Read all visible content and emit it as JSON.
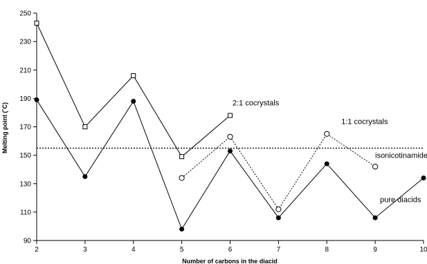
{
  "chart_data": {
    "type": "line",
    "xlabel": "Number of carbons in the diacid",
    "ylabel": "Melting point (˚C)",
    "xlim": [
      2,
      10
    ],
    "ylim": [
      90,
      250
    ],
    "x_ticks": [
      2,
      3,
      4,
      5,
      6,
      7,
      8,
      9,
      10
    ],
    "y_ticks": [
      90,
      110,
      130,
      150,
      170,
      190,
      210,
      230,
      250
    ],
    "grid": false,
    "legend": "none",
    "series": [
      {
        "name": "pure diacids",
        "marker": "filled-circle",
        "line": "solid",
        "x": [
          2,
          3,
          4,
          5,
          6,
          7,
          8,
          9,
          10
        ],
        "values": [
          189,
          135,
          188,
          98,
          153,
          106,
          144,
          106,
          134
        ]
      },
      {
        "name": "2:1 cocrystals",
        "marker": "open-square",
        "line": "solid",
        "x": [
          2,
          3,
          4,
          5,
          6
        ],
        "values": [
          243,
          170,
          206,
          149,
          178
        ]
      },
      {
        "name": "1:1 cocrystals",
        "marker": "open-circle",
        "line": "dotted",
        "x": [
          5,
          6,
          7,
          8,
          9
        ],
        "values": [
          134,
          163,
          112,
          165,
          142
        ]
      }
    ],
    "reference_line": {
      "label": "isonicotinamide",
      "value": 155,
      "style": "dotted"
    },
    "annotations": [
      {
        "text": "2:1 cocrystals",
        "x": 6.05,
        "y": 185
      },
      {
        "text": "1:1 cocrystals",
        "x": 8.3,
        "y": 172
      },
      {
        "text": "isonicotinamide",
        "x": 9.0,
        "y": 148
      },
      {
        "text": "pure diacids",
        "x": 9.1,
        "y": 117
      }
    ]
  }
}
